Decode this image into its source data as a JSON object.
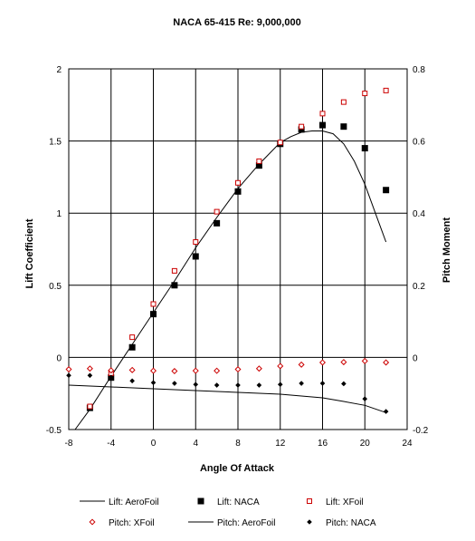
{
  "chart_data": {
    "type": "scatter",
    "title": "NACA 65-415 Re: 9,000,000",
    "xlabel": "Angle Of Attack",
    "ylabel": "Lift Coefficient",
    "y2label": "Pitch Moment",
    "xlim": [
      -8,
      24
    ],
    "ylim": [
      -0.5,
      2
    ],
    "y2lim": [
      -0.2,
      0.8
    ],
    "x_ticks": [
      "-8",
      "-4",
      "0",
      "4",
      "8",
      "12",
      "16",
      "20",
      "24"
    ],
    "y_ticks": [
      "-0.5",
      "0",
      "0.5",
      "1",
      "1.5",
      "2"
    ],
    "y2_ticks": [
      "-0.2",
      "0",
      "0.2",
      "0.4",
      "0.6",
      "0.8"
    ],
    "grid": true,
    "legend_position": "bottom",
    "series": [
      {
        "name": "Lift: AeroFoil",
        "style": "line",
        "axis": "left",
        "x": [
          -7.4,
          -6,
          -4,
          -2,
          0,
          2,
          4,
          6,
          8,
          10,
          12,
          13,
          14,
          15,
          16,
          17,
          18,
          19,
          20,
          21,
          22
        ],
        "y": [
          -0.5,
          -0.36,
          -0.13,
          0.09,
          0.31,
          0.53,
          0.76,
          0.97,
          1.17,
          1.34,
          1.49,
          1.53,
          1.56,
          1.57,
          1.57,
          1.55,
          1.48,
          1.36,
          1.2,
          1.0,
          0.8
        ]
      },
      {
        "name": "Lift: NACA",
        "style": "filled-square",
        "axis": "left",
        "x": [
          -6,
          -4,
          -2,
          0,
          2,
          4,
          6,
          8,
          10,
          12,
          14,
          16,
          18,
          20,
          22
        ],
        "y": [
          -0.35,
          -0.14,
          0.07,
          0.3,
          0.5,
          0.7,
          0.93,
          1.15,
          1.33,
          1.48,
          1.58,
          1.61,
          1.6,
          1.45,
          1.16
        ]
      },
      {
        "name": "Lift: XFoil",
        "style": "open-square",
        "axis": "left",
        "x": [
          -6,
          -4,
          -2,
          0,
          2,
          4,
          6,
          8,
          10,
          12,
          14,
          16,
          18,
          20,
          22
        ],
        "y": [
          -0.34,
          -0.11,
          0.14,
          0.37,
          0.6,
          0.8,
          1.01,
          1.21,
          1.36,
          1.49,
          1.6,
          1.69,
          1.77,
          1.83,
          1.85
        ]
      },
      {
        "name": "Pitch: XFoil",
        "style": "open-diamond",
        "axis": "right",
        "x": [
          -8,
          -6,
          -4,
          -2,
          0,
          2,
          4,
          6,
          8,
          10,
          12,
          14,
          16,
          18,
          20,
          22
        ],
        "y": [
          -0.033,
          -0.031,
          -0.036,
          -0.035,
          -0.037,
          -0.038,
          -0.037,
          -0.037,
          -0.033,
          -0.031,
          -0.024,
          -0.02,
          -0.014,
          -0.013,
          -0.01,
          -0.014
        ]
      },
      {
        "name": "Pitch: AeroFoil",
        "style": "line",
        "axis": "right",
        "x": [
          -8,
          -4,
          0,
          4,
          8,
          12,
          16,
          18,
          20,
          22
        ],
        "y": [
          -0.077,
          -0.082,
          -0.087,
          -0.092,
          -0.097,
          -0.102,
          -0.112,
          -0.122,
          -0.133,
          -0.153
        ]
      },
      {
        "name": "Pitch: NACA",
        "style": "filled-diamond",
        "axis": "right",
        "x": [
          -8,
          -6,
          -4,
          -2,
          0,
          2,
          4,
          6,
          8,
          10,
          12,
          14,
          16,
          18,
          20,
          22
        ],
        "y": [
          -0.05,
          -0.05,
          -0.055,
          -0.065,
          -0.07,
          -0.072,
          -0.075,
          -0.077,
          -0.077,
          -0.077,
          -0.075,
          -0.072,
          -0.072,
          -0.073,
          -0.115,
          -0.15
        ]
      }
    ],
    "colors": {
      "black": "#000000",
      "red": "#cc0000"
    }
  }
}
